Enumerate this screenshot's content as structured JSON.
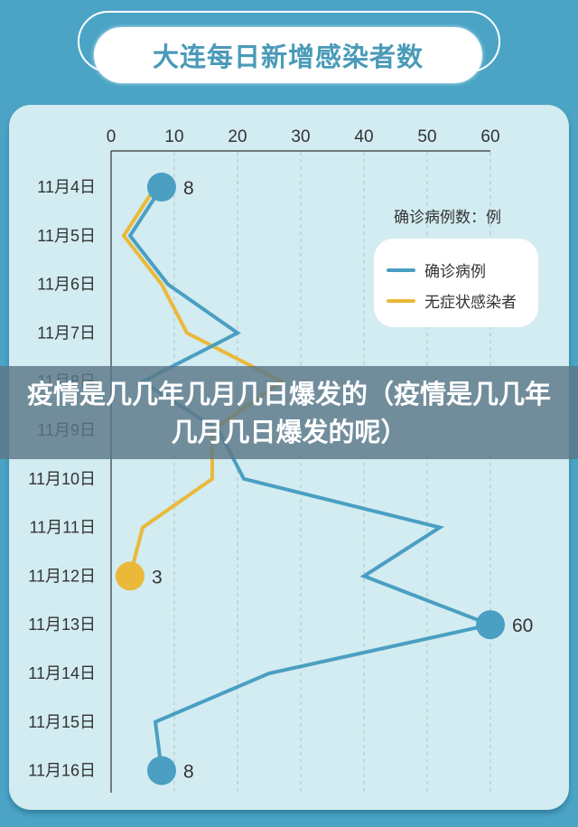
{
  "title": "大连每日新增感染者数",
  "overlay_caption": "疫情是几几年几月几日爆发的（疫情是几几年几月几日爆发的呢）",
  "unit_label": "确诊病例数：例",
  "legend": [
    {
      "label": "确诊病例",
      "color": "#4a9fc2"
    },
    {
      "label": "无症状感染者",
      "color": "#eab93a"
    }
  ],
  "colors": {
    "frame": "#4ba4c6",
    "panel": "#d2ecf1",
    "confirmed": "#4a9fc2",
    "asymptomatic": "#eab93a"
  },
  "chart_data": {
    "type": "line",
    "title": "大连每日新增感染者数",
    "orientation": "horizontal (dates on vertical axis, counts on top horizontal axis)",
    "categories": [
      "11月4日",
      "11月5日",
      "11月6日",
      "11月7日",
      "11月8日",
      "11月9日",
      "11月10日",
      "11月11日",
      "11月12日",
      "11月13日",
      "11月14日",
      "11月15日",
      "11月16日"
    ],
    "x_ticks": [
      0,
      10,
      20,
      30,
      40,
      50,
      60
    ],
    "xlim": [
      0,
      60
    ],
    "ylabel": "",
    "xlabel": "确诊病例数：例",
    "grid": "vertical dashed lines at each 10",
    "legend_position": "right, upper",
    "series": [
      {
        "name": "确诊病例",
        "color": "#4a9fc2",
        "values": [
          8,
          3,
          9,
          20,
          5,
          17,
          21,
          52,
          40,
          60,
          25,
          7,
          8
        ]
      },
      {
        "name": "无症状感染者",
        "color": "#eab93a",
        "values": [
          7,
          2,
          8,
          12,
          27,
          16,
          16,
          5,
          3,
          null,
          null,
          null,
          null
        ]
      }
    ],
    "annotations": [
      {
        "category": "11月4日",
        "series": "确诊病例",
        "label": "8"
      },
      {
        "category": "11月12日",
        "series": "无症状感染者",
        "label": "3"
      },
      {
        "category": "11月13日",
        "series": "确诊病例",
        "label": "60"
      },
      {
        "category": "11月16日",
        "series": "确诊病例",
        "label": "8"
      }
    ]
  }
}
